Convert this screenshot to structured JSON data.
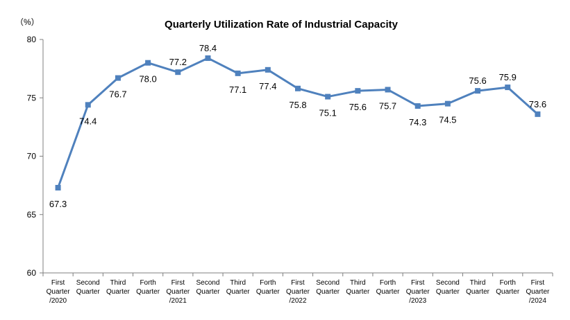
{
  "chart_data": {
    "type": "line",
    "title": "Quarterly Utilization Rate of Industrial Capacity",
    "unit_label": "（%）",
    "ylim": [
      60,
      80
    ],
    "yticks": [
      60,
      65,
      70,
      75,
      80
    ],
    "categories": [
      [
        "First",
        "Quarter",
        "/2020"
      ],
      [
        "Second",
        "Quarter"
      ],
      [
        "Third",
        "Quarter"
      ],
      [
        "Forth",
        "Quarter"
      ],
      [
        "First",
        "Quarter",
        "/2021"
      ],
      [
        "Second",
        "Quarter"
      ],
      [
        "Third",
        "Quarter"
      ],
      [
        "Forth",
        "Quarter"
      ],
      [
        "First",
        "Quarter",
        "/2022"
      ],
      [
        "Second",
        "Quarter"
      ],
      [
        "Third",
        "Quarter"
      ],
      [
        "Forth",
        "Quarter"
      ],
      [
        "First",
        "Quarter",
        "/2023"
      ],
      [
        "Second",
        "Quarter"
      ],
      [
        "Third",
        "Quarter"
      ],
      [
        "Forth",
        "Quarter"
      ],
      [
        "First",
        "Quarter",
        "/2024"
      ]
    ],
    "values": [
      67.3,
      74.4,
      76.7,
      78.0,
      77.2,
      78.4,
      77.1,
      77.4,
      75.8,
      75.1,
      75.6,
      75.7,
      74.3,
      74.5,
      75.6,
      75.9,
      73.6
    ],
    "labels": [
      "67.3",
      "74.4",
      "76.7",
      "78.0",
      "77.2",
      "78.4",
      "77.1",
      "77.4",
      "75.8",
      "75.1",
      "75.6",
      "75.7",
      "74.3",
      "74.5",
      "75.6",
      "75.9",
      "73.6"
    ],
    "label_side": [
      "below",
      "below",
      "below",
      "below",
      "above",
      "above",
      "below",
      "below",
      "below",
      "below",
      "below",
      "below",
      "below",
      "below",
      "above",
      "above",
      "above"
    ],
    "grid": false,
    "legend": "none",
    "colors": {
      "series": "#4f81bd",
      "axis": "#7f7f7f"
    }
  }
}
